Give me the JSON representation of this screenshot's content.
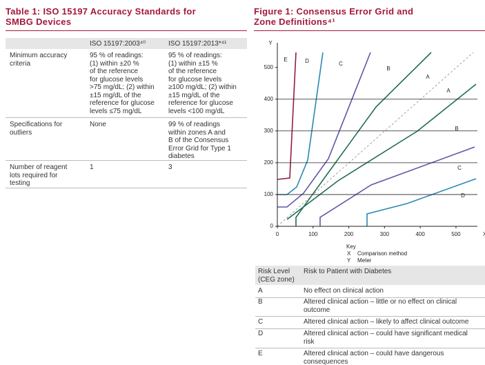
{
  "table": {
    "title": [
      "Table 1: ISO 15197 Accuracy Standards for",
      "SMBG Devices"
    ],
    "header": [
      "",
      "ISO 15197:2003⁴⁰",
      "ISO 15197:2013*⁴¹"
    ],
    "rows": [
      [
        [
          "Minimum accuracy",
          "criteria"
        ],
        [
          "95 % of readings:",
          "(1) within ±20 %",
          "of the reference",
          "for glucose levels",
          ">75 mg/dL; (2) within",
          "±15 mg/dL of the",
          "reference for glucose",
          "levels ≤75 mg/dL"
        ],
        [
          "95 % of readings:",
          "(1) within ±15 %",
          "of the reference",
          "for glucose levels",
          "≥100 mg/dL; (2) within",
          "±15 mg/dL of the",
          "reference for glucose",
          "levels <100 mg/dL"
        ]
      ],
      [
        [
          "Specifications for",
          "outliers"
        ],
        [
          "None"
        ],
        [
          "99 % of readings",
          "within zones A and",
          "B of the Consensus",
          "Error Grid for Type 1",
          "diabetes"
        ]
      ],
      [
        [
          "Number of reagent",
          "lots required for",
          "testing"
        ],
        [
          "1"
        ],
        [
          "3"
        ]
      ]
    ]
  },
  "figure": {
    "title": [
      "Figure 1: Consensus Error Grid and",
      "Zone Definitions⁴¹"
    ],
    "x_axis_label": "X",
    "y_axis_label": "Y",
    "xlim": [
      0,
      560
    ],
    "ylim": [
      0,
      560
    ],
    "xticks": [
      0,
      100,
      200,
      300,
      400,
      500
    ],
    "yticks": [
      0,
      100,
      200,
      300,
      400,
      500
    ],
    "ygrid": [
      100,
      200,
      300,
      400
    ],
    "zone_labels": [
      "E",
      "D",
      "C",
      "B",
      "A",
      "A",
      "B",
      "C",
      "D"
    ],
    "key": {
      "title": "Key",
      "items": [
        [
          "X",
          "Comparison method"
        ],
        [
          "Y",
          "Meter"
        ]
      ]
    }
  },
  "risk_table": {
    "header": [
      [
        "Risk Level",
        "(CEG zone)"
      ],
      [
        "Risk to Patient with Diabetes"
      ]
    ],
    "rows": [
      [
        [
          "A"
        ],
        [
          "No effect on clinical action"
        ]
      ],
      [
        [
          "B"
        ],
        [
          "Altered clinical action – little or no effect on clinical",
          "outcome"
        ]
      ],
      [
        [
          "C"
        ],
        [
          "Altered clinical action – likely to affect clinical outcome"
        ]
      ],
      [
        [
          "D"
        ],
        [
          "Altered clinical action – could have significant medical",
          "risk"
        ]
      ],
      [
        [
          "E"
        ],
        [
          "Altered clinical action – could have dangerous",
          "consequences"
        ]
      ]
    ]
  }
}
